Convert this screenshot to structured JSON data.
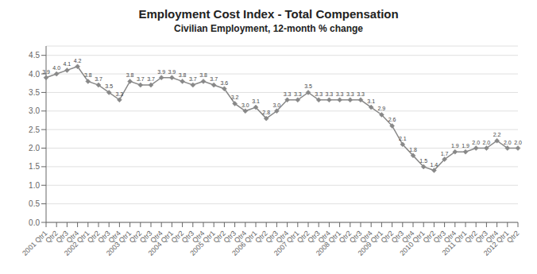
{
  "chart_data": {
    "type": "line",
    "title": "Employment Cost Index - Total Compensation",
    "subtitle": "Civilian Employment, 12-month % change",
    "categories": [
      "2001 Qtr1",
      "Qtr2",
      "Qtr3",
      "Qtr4",
      "2002 Qtr1",
      "Qtr2",
      "Qtr3",
      "Qtr4",
      "2003 Qtr1",
      "Qtr2",
      "Qtr3",
      "Qtr4",
      "2004 Qtr1",
      "Qtr2",
      "Qtr3",
      "Qtr4",
      "2005 Qtr1",
      "Qtr2",
      "Qtr3",
      "Qtr4",
      "2006 Qtr1",
      "Qtr2",
      "Qtr3",
      "Qtr4",
      "2007 Qtr1",
      "Qtr2",
      "Qtr3",
      "Qtr4",
      "2008 Qtr1",
      "Qtr2",
      "Qtr3",
      "Qtr4",
      "2009 Qtr1",
      "Qtr2",
      "Qtr3",
      "Qtr4",
      "2010 Qtr1",
      "Qtr2",
      "Qtr3",
      "Qtr4",
      "2011 Qtr1",
      "Qtr2",
      "Qtr3",
      "Qtr4",
      "2012 Qtr1",
      "Qtr2"
    ],
    "values": [
      3.9,
      4.0,
      4.1,
      4.2,
      3.8,
      3.7,
      3.5,
      3.3,
      3.8,
      3.7,
      3.7,
      3.9,
      3.9,
      3.8,
      3.7,
      3.8,
      3.7,
      3.6,
      3.2,
      3.0,
      3.1,
      2.8,
      3.0,
      3.3,
      3.3,
      3.5,
      3.3,
      3.3,
      3.3,
      3.3,
      3.3,
      3.1,
      2.9,
      2.6,
      2.1,
      1.8,
      1.5,
      1.4,
      1.7,
      1.9,
      1.9,
      2.0,
      2.0,
      2.2,
      2.0,
      2.0
    ],
    "value_labels": [
      "3.9",
      "4.0",
      "4.1",
      "4.2",
      "3.8",
      "3.7",
      "3.5",
      "3.3",
      "3.8",
      "3.7",
      "3.7",
      "3.9",
      "3.9",
      "3.8",
      "3.7",
      "3.8",
      "3.7",
      "3.6",
      "3.2",
      "3.0",
      "3.1",
      "2.8",
      "3.0",
      "3.3",
      "3.3",
      "3.5",
      "3.3",
      "3.3",
      "3.3",
      "3.3",
      "3.3",
      "3.1",
      "2.9",
      "2.6",
      "2.1",
      "1.8",
      "1.5",
      "1.4",
      "1.7",
      "1.9",
      "1.9",
      "2.0",
      "2.0",
      "2.2",
      "2.0",
      "2.0"
    ],
    "color": "#888888",
    "marker": "diamond",
    "data_labels": true,
    "ylim": [
      0.0,
      4.75
    ],
    "yticks": [
      {
        "value": 0,
        "label": "0.0"
      },
      0.5,
      {
        "value": 1,
        "label": "1.0"
      },
      1.5,
      {
        "value": 2,
        "label": "2.0"
      },
      2.5,
      {
        "value": 3,
        "label": "3.0"
      },
      3.5,
      {
        "value": 4,
        "label": "4.0"
      },
      4.5
    ],
    "grid": true
  }
}
